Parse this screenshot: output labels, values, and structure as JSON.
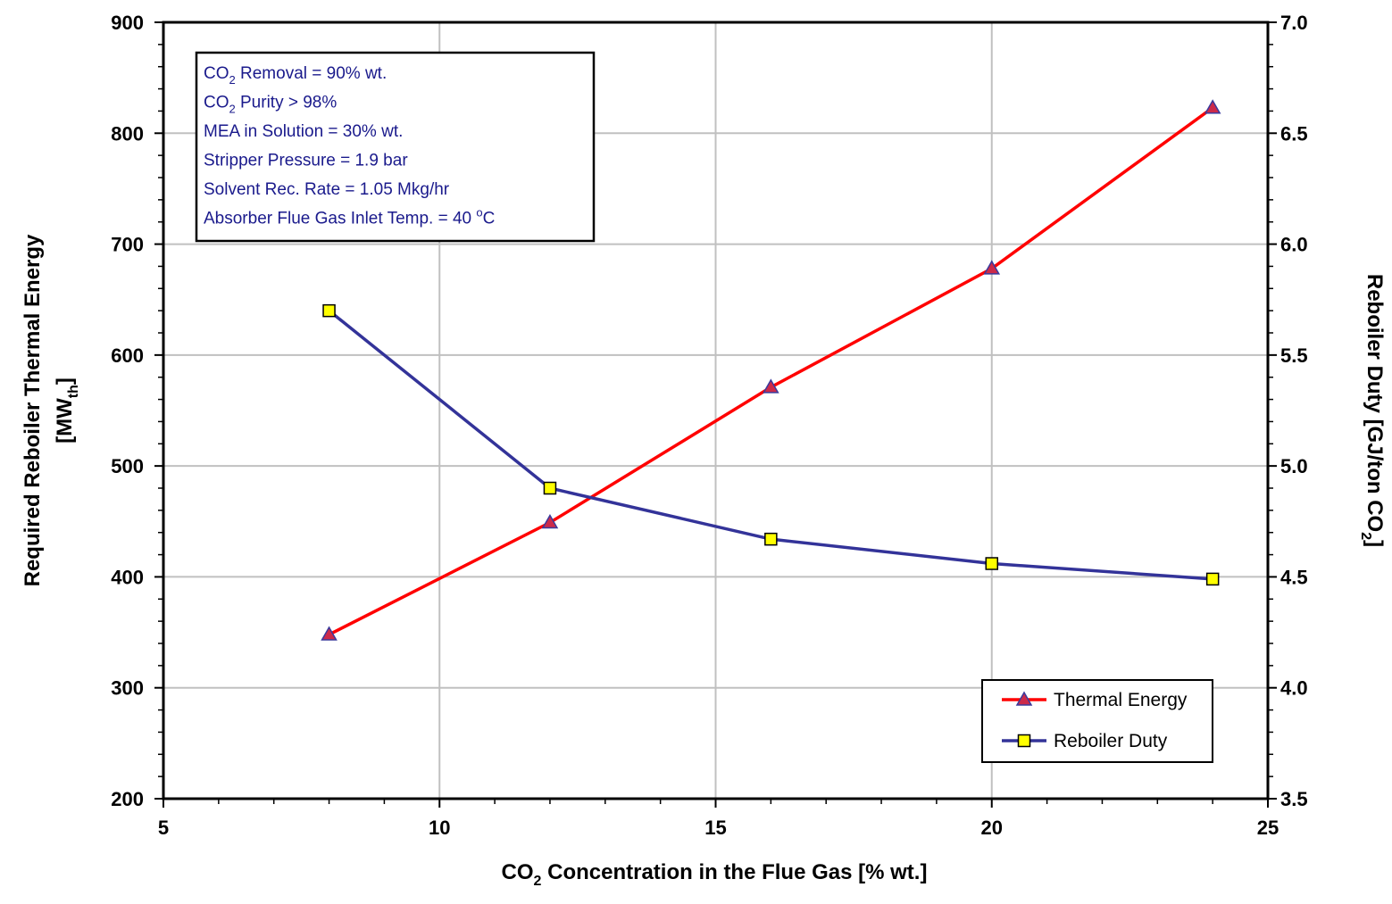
{
  "chart_data": {
    "type": "line",
    "xlabel": {
      "pre": "CO",
      "sub": "2",
      "post": " Concentration in the Flue Gas [% wt.]"
    },
    "ylabel_left": {
      "line1": "Required Reboiler Thermal Energy",
      "line2_pre": "[MW",
      "line2_sub": "th",
      "line2_post": "]"
    },
    "ylabel_right": {
      "pre": "Reboiler Duty [GJ/ton CO",
      "sub": "2",
      "post": "]"
    },
    "xlim": [
      5,
      25
    ],
    "ylim_left": [
      200,
      900
    ],
    "ylim_right": [
      3.5,
      7.0
    ],
    "x_ticks": [
      "5",
      "10",
      "15",
      "20",
      "25"
    ],
    "y_left_ticks": [
      "200",
      "300",
      "400",
      "500",
      "600",
      "700",
      "800",
      "900"
    ],
    "y_right_ticks": [
      "3.5",
      "4.0",
      "4.5",
      "5.0",
      "5.5",
      "6.0",
      "6.5",
      "7.0"
    ],
    "grid": true,
    "legend_position": "bottom-right",
    "series": [
      {
        "name": "Thermal Energy",
        "axis": "left",
        "color": "#ff0000",
        "marker": "triangle",
        "marker_fill": "#cc2a4a",
        "x": [
          8,
          12,
          16,
          20,
          24
        ],
        "y": [
          348,
          449,
          571,
          678,
          823
        ]
      },
      {
        "name": "Reboiler Duty",
        "axis": "right",
        "color": "#333399",
        "marker": "square",
        "marker_fill": "#ffff00",
        "x": [
          8,
          12,
          16,
          20,
          24
        ],
        "y": [
          5.7,
          4.9,
          4.67,
          4.56,
          4.49
        ]
      }
    ],
    "annotation_lines": [
      {
        "pre": "CO",
        "sub": "2",
        "post": " Removal = 90% wt."
      },
      {
        "pre": "CO",
        "sub": "2",
        "post": " Purity > 98%"
      },
      {
        "pre": "MEA in Solution = 30% wt.",
        "sub": "",
        "post": ""
      },
      {
        "pre": "Stripper Pressure = 1.9 bar",
        "sub": "",
        "post": ""
      },
      {
        "pre": "Solvent Rec. Rate = 1.05 Mkg/hr",
        "sub": "",
        "post": ""
      },
      {
        "pre": "Absorber Flue Gas Inlet Temp. = 40 ",
        "sup": "o",
        "post": "C"
      }
    ]
  }
}
